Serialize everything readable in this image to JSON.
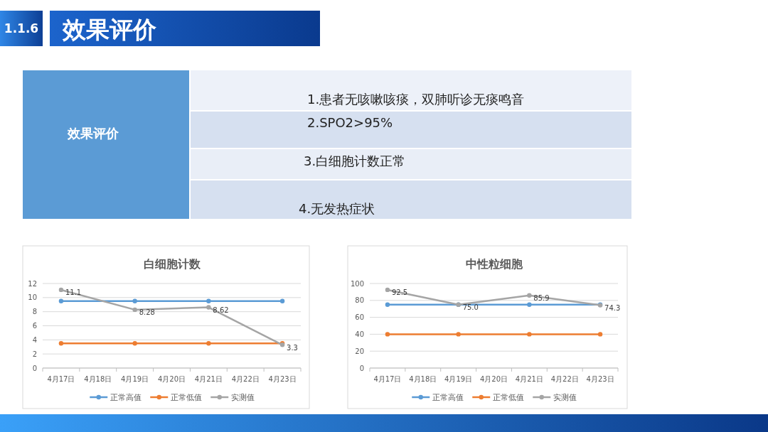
{
  "chart_data": [
    {
      "type": "other",
      "title": "效果评价",
      "annotations": [
        "1.1.6",
        "效果评价",
        "1.患者无咳嗽咳痰，双肺听诊无痰鸣音",
        "2.SPO2>95%",
        "3.白细胞计数正常",
        "4.无发热症状"
      ]
    },
    {
      "type": "line",
      "title": "白细胞计数",
      "categories": [
        "4月17日",
        "4月18日",
        "4月19日",
        "4月20日",
        "4月21日",
        "4月22日",
        "4月23日"
      ],
      "series": [
        {
          "name": "正常高值",
          "color": "#5b9bd5",
          "values": [
            9.5,
            null,
            9.5,
            null,
            9.5,
            null,
            9.5
          ]
        },
        {
          "name": "正常低值",
          "color": "#ed7d31",
          "values": [
            3.5,
            null,
            3.5,
            null,
            3.5,
            null,
            3.5
          ]
        },
        {
          "name": "实测值",
          "color": "#a5a5a5",
          "values": [
            11.1,
            null,
            8.28,
            null,
            8.62,
            null,
            3.3
          ],
          "value_labels": [
            "11.1",
            null,
            "8.28",
            null,
            "8.62",
            null,
            "3.3"
          ]
        }
      ],
      "ylim": [
        0,
        12
      ],
      "yticks": [
        0,
        2,
        4,
        6,
        8,
        10,
        12
      ],
      "grid": "y",
      "legend": "bottom",
      "marker": "circle",
      "line_style": "solid"
    },
    {
      "type": "line",
      "title": "中性粒细胞",
      "categories": [
        "4月17日",
        "4月18日",
        "4月19日",
        "4月20日",
        "4月21日",
        "4月22日",
        "4月23日"
      ],
      "series": [
        {
          "name": "正常高值",
          "color": "#5b9bd5",
          "values": [
            75,
            null,
            75,
            null,
            75,
            null,
            75
          ]
        },
        {
          "name": "正常低值",
          "color": "#ed7d31",
          "values": [
            40,
            null,
            40,
            null,
            40,
            null,
            40
          ]
        },
        {
          "name": "实测值",
          "color": "#a5a5a5",
          "values": [
            92.5,
            null,
            75,
            null,
            85.9,
            null,
            74.3
          ],
          "value_labels": [
            "92.5",
            null,
            "75.0",
            null,
            "85.9",
            null,
            "74.3"
          ]
        }
      ],
      "ylim": [
        0,
        100
      ],
      "yticks": [
        0,
        20,
        40,
        60,
        80,
        100
      ],
      "grid": "y",
      "legend": "bottom",
      "marker": "circle",
      "line_style": "solid"
    }
  ]
}
